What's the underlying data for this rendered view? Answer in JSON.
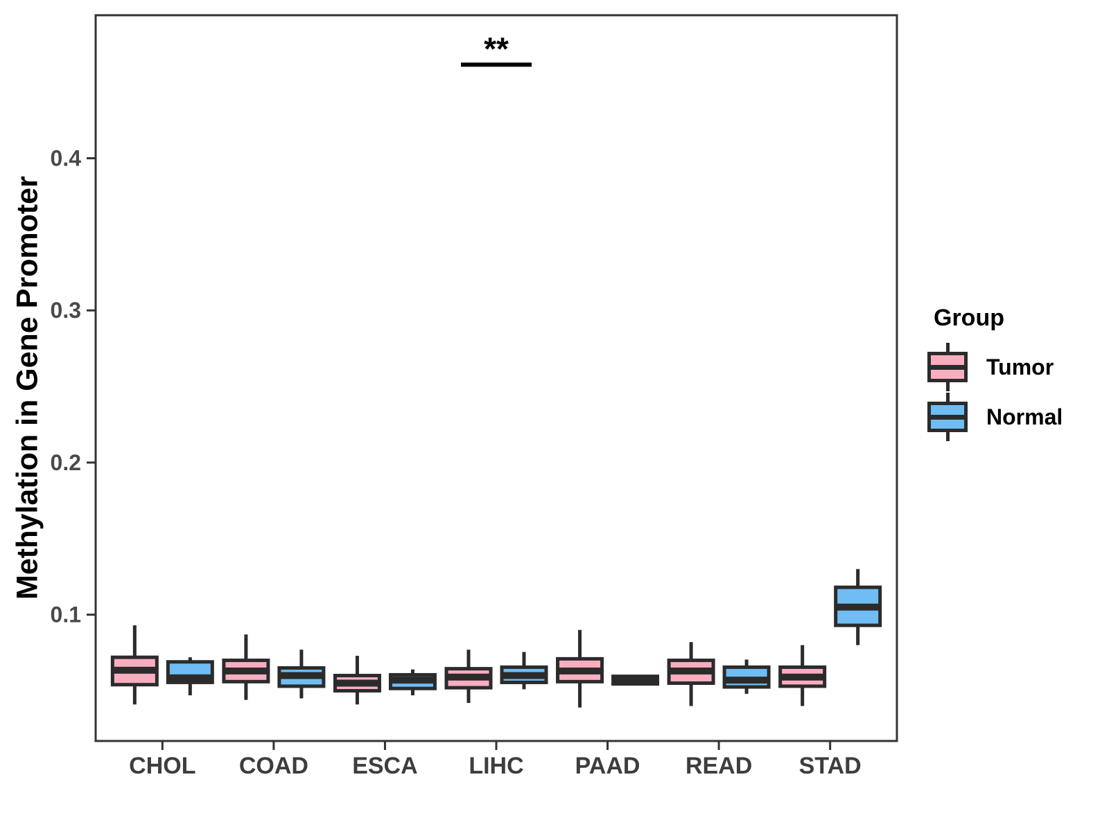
{
  "chart_data": {
    "type": "boxplot",
    "title": "",
    "xlabel": "",
    "ylabel": "Methylation in Gene Promoter",
    "categories": [
      "CHOL",
      "COAD",
      "ESCA",
      "LIHC",
      "PAAD",
      "READ",
      "STAD"
    ],
    "y_ticks": [
      0.1,
      0.2,
      0.3,
      0.4
    ],
    "y_domain": [
      0.017,
      0.494
    ],
    "grid": "off",
    "legend": {
      "title": "Group",
      "position": "right"
    },
    "colors": {
      "stroke": "#2B2B2B",
      "frame": "#333333"
    },
    "series": [
      {
        "name": "Tumor",
        "color": "#F9AEC0",
        "boxes": [
          {
            "low": 0.041,
            "q1": 0.054,
            "median": 0.0635,
            "q3": 0.072,
            "high": 0.093
          },
          {
            "low": 0.044,
            "q1": 0.056,
            "median": 0.063,
            "q3": 0.07,
            "high": 0.087
          },
          {
            "low": 0.041,
            "q1": 0.05,
            "median": 0.055,
            "q3": 0.06,
            "high": 0.073
          },
          {
            "low": 0.042,
            "q1": 0.052,
            "median": 0.059,
            "q3": 0.0645,
            "high": 0.077
          },
          {
            "low": 0.039,
            "q1": 0.056,
            "median": 0.063,
            "q3": 0.071,
            "high": 0.09
          },
          {
            "low": 0.04,
            "q1": 0.055,
            "median": 0.063,
            "q3": 0.07,
            "high": 0.082
          },
          {
            "low": 0.04,
            "q1": 0.053,
            "median": 0.059,
            "q3": 0.0655,
            "high": 0.08
          }
        ]
      },
      {
        "name": "Normal",
        "color": "#6FBDF2",
        "boxes": [
          {
            "low": 0.047,
            "q1": 0.0555,
            "median": 0.0585,
            "q3": 0.069,
            "high": 0.072
          },
          {
            "low": 0.045,
            "q1": 0.053,
            "median": 0.06,
            "q3": 0.065,
            "high": 0.077
          },
          {
            "low": 0.047,
            "q1": 0.0515,
            "median": 0.057,
            "q3": 0.0605,
            "high": 0.064
          },
          {
            "low": 0.051,
            "q1": 0.0555,
            "median": 0.06,
            "q3": 0.0655,
            "high": 0.0755
          },
          {
            "low": 0.0535,
            "q1": 0.0545,
            "median": 0.057,
            "q3": 0.0595,
            "high": 0.0605
          },
          {
            "low": 0.048,
            "q1": 0.0525,
            "median": 0.057,
            "q3": 0.0655,
            "high": 0.0705
          },
          {
            "low": 0.08,
            "q1": 0.093,
            "median": 0.105,
            "q3": 0.118,
            "high": 0.13
          }
        ]
      }
    ],
    "significance": [
      {
        "label": "**",
        "category": "LIHC",
        "bar_value": 0.4615,
        "label_value": 0.472
      }
    ]
  }
}
